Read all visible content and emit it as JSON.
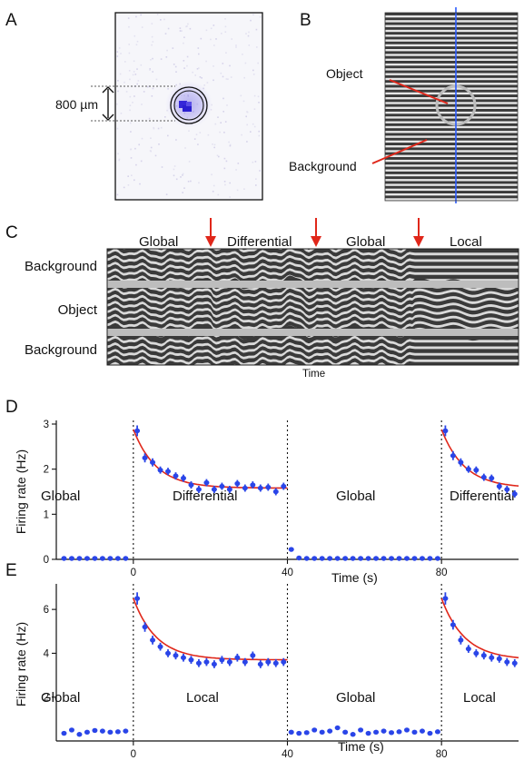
{
  "panels": {
    "a": "A",
    "b": "B",
    "c": "C",
    "d": "D",
    "e": "E"
  },
  "panel_a": {
    "scale_label": "800 µm"
  },
  "panel_b": {
    "object_label": "Object",
    "background_label": "Background"
  },
  "panel_c": {
    "epochs": [
      "Global",
      "Differential",
      "Global",
      "Local"
    ],
    "rows": [
      "Background",
      "Object",
      "Background"
    ],
    "time_label": "Time"
  },
  "chart_data": [
    {
      "type": "scatter",
      "panel": "D",
      "ylabel": "Firing rate (Hz)",
      "xlabel": "Time (s)",
      "xlim": [
        -20,
        100
      ],
      "ylim": [
        0,
        3
      ],
      "xticks": [
        0,
        40,
        80
      ],
      "yticks": [
        0,
        1,
        2,
        3
      ],
      "epoch_labels": [
        "Global",
        "Differential",
        "Global",
        "Differential"
      ],
      "epoch_boundaries": [
        0,
        40,
        80
      ],
      "series": [
        {
          "x": [
            -18,
            -16,
            -14,
            -12,
            -10,
            -8,
            -6,
            -4,
            -2,
            1,
            3,
            5,
            7,
            9,
            11,
            13,
            15,
            17,
            19,
            21,
            23,
            25,
            27,
            29,
            31,
            33,
            35,
            37,
            39,
            41,
            43,
            45,
            47,
            49,
            51,
            53,
            55,
            57,
            59,
            61,
            63,
            65,
            67,
            69,
            71,
            73,
            75,
            77,
            79,
            81,
            83,
            85,
            87,
            89,
            91,
            93,
            95,
            97,
            99
          ],
          "y": [
            0.02,
            0.02,
            0.02,
            0.02,
            0.02,
            0.02,
            0.02,
            0.02,
            0.02,
            2.85,
            2.25,
            2.15,
            1.98,
            1.95,
            1.85,
            1.8,
            1.65,
            1.55,
            1.7,
            1.55,
            1.62,
            1.55,
            1.68,
            1.58,
            1.65,
            1.58,
            1.6,
            1.5,
            1.62,
            0.22,
            0.03,
            0.02,
            0.02,
            0.02,
            0.02,
            0.02,
            0.02,
            0.02,
            0.02,
            0.02,
            0.02,
            0.02,
            0.02,
            0.02,
            0.02,
            0.02,
            0.02,
            0.02,
            0.02,
            2.85,
            2.3,
            2.15,
            2.0,
            1.98,
            1.82,
            1.8,
            1.62,
            1.55,
            1.45
          ],
          "err": [
            0,
            0,
            0,
            0,
            0,
            0,
            0,
            0,
            0,
            0.12,
            0.1,
            0.09,
            0.08,
            0.08,
            0.08,
            0.08,
            0.08,
            0.08,
            0.08,
            0.08,
            0.08,
            0.08,
            0.08,
            0.08,
            0.08,
            0.08,
            0.08,
            0.08,
            0.08,
            0,
            0,
            0,
            0,
            0,
            0,
            0,
            0,
            0,
            0,
            0,
            0,
            0,
            0,
            0,
            0,
            0,
            0,
            0,
            0,
            0.12,
            0.1,
            0.09,
            0.08,
            0.08,
            0.08,
            0.08,
            0.08,
            0.08,
            0.08
          ]
        }
      ],
      "fit": {
        "asymptote": 1.58,
        "amplitude": 1.3,
        "tau": 6
      }
    },
    {
      "type": "scatter",
      "panel": "E",
      "ylabel": "Firing rate (Hz)",
      "xlabel": "Time (s)",
      "xlim": [
        -20,
        100
      ],
      "ylim": [
        0,
        7
      ],
      "xticks": [
        0,
        40,
        80
      ],
      "yticks": [
        2,
        4,
        6
      ],
      "epoch_labels": [
        "Global",
        "Local",
        "Global",
        "Local"
      ],
      "epoch_boundaries": [
        0,
        40,
        80
      ],
      "series": [
        {
          "x": [
            -18,
            -16,
            -14,
            -12,
            -10,
            -8,
            -6,
            -4,
            -2,
            1,
            3,
            5,
            7,
            9,
            11,
            13,
            15,
            17,
            19,
            21,
            23,
            25,
            27,
            29,
            31,
            33,
            35,
            37,
            39,
            41,
            43,
            45,
            47,
            49,
            51,
            53,
            55,
            57,
            59,
            61,
            63,
            65,
            67,
            69,
            71,
            73,
            75,
            77,
            79,
            81,
            83,
            85,
            87,
            89,
            91,
            93,
            95,
            97,
            99
          ],
          "y": [
            0.35,
            0.5,
            0.3,
            0.4,
            0.48,
            0.45,
            0.4,
            0.42,
            0.45,
            6.5,
            5.2,
            4.6,
            4.3,
            4.0,
            3.9,
            3.8,
            3.7,
            3.55,
            3.6,
            3.5,
            3.7,
            3.6,
            3.8,
            3.6,
            3.9,
            3.5,
            3.6,
            3.55,
            3.6,
            0.4,
            0.35,
            0.38,
            0.5,
            0.4,
            0.45,
            0.6,
            0.4,
            0.3,
            0.5,
            0.35,
            0.4,
            0.45,
            0.38,
            0.42,
            0.5,
            0.4,
            0.45,
            0.35,
            0.42,
            6.5,
            5.3,
            4.6,
            4.2,
            4.0,
            3.9,
            3.8,
            3.75,
            3.6,
            3.55
          ],
          "err": [
            0,
            0,
            0,
            0,
            0,
            0,
            0,
            0,
            0,
            0.28,
            0.22,
            0.2,
            0.18,
            0.18,
            0.18,
            0.18,
            0.18,
            0.18,
            0.18,
            0.18,
            0.18,
            0.18,
            0.18,
            0.18,
            0.18,
            0.18,
            0.18,
            0.18,
            0.18,
            0,
            0,
            0,
            0,
            0,
            0,
            0,
            0,
            0,
            0,
            0,
            0,
            0,
            0,
            0,
            0,
            0,
            0,
            0,
            0,
            0.28,
            0.22,
            0.2,
            0.18,
            0.18,
            0.18,
            0.18,
            0.18,
            0.18,
            0.18
          ]
        }
      ],
      "fit": {
        "asymptote": 3.7,
        "amplitude": 2.8,
        "tau": 6
      }
    }
  ],
  "colors": {
    "data": "#2a45e8",
    "fit": "#e0271a",
    "arrow": "#e0271a",
    "blue_line": "#2a5bff",
    "stripe_dark": "#3a3a3a"
  }
}
